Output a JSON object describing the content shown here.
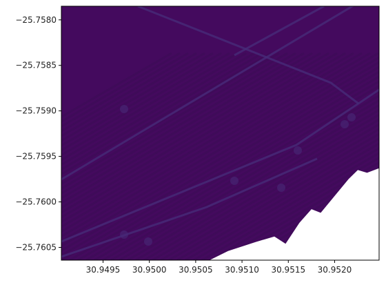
{
  "chart_data": {
    "type": "heatmap",
    "title": "",
    "xlabel": "",
    "ylabel": "",
    "xlim": [
      30.94905,
      30.95248
    ],
    "ylim": [
      -25.76064,
      -25.75785
    ],
    "x_ticks": [
      {
        "value": 30.9495,
        "label": "30.9495"
      },
      {
        "value": 30.95,
        "label": "30.9500"
      },
      {
        "value": 30.9505,
        "label": "30.9505"
      },
      {
        "value": 30.951,
        "label": "30.9510"
      },
      {
        "value": 30.9515,
        "label": "30.9515"
      },
      {
        "value": 30.952,
        "label": "30.9520"
      }
    ],
    "y_ticks": [
      {
        "value": -25.758,
        "label": "−25.7580"
      },
      {
        "value": -25.7585,
        "label": "−25.7585"
      },
      {
        "value": -25.759,
        "label": "−25.7590"
      },
      {
        "value": -25.7595,
        "label": "−25.7595"
      },
      {
        "value": -25.76,
        "label": "−25.7600"
      },
      {
        "value": -25.7605,
        "label": "−25.7605"
      }
    ],
    "colormap": "viridis",
    "grid": false,
    "legend": "none",
    "nodata_boundary": [
      [
        30.95065,
        -25.76064
      ],
      [
        30.95085,
        -25.76054
      ],
      [
        30.95115,
        -25.76044
      ],
      [
        30.95135,
        -25.76038
      ],
      [
        30.95147,
        -25.76046
      ],
      [
        30.95162,
        -25.76023
      ],
      [
        30.95175,
        -25.76008
      ],
      [
        30.95185,
        -25.76012
      ],
      [
        30.95215,
        -25.75975
      ],
      [
        30.95225,
        -25.75965
      ],
      [
        30.95235,
        -25.75968
      ],
      [
        30.95248,
        -25.75963
      ]
    ],
    "colors": {
      "background": "#440a5e",
      "stripe": "#3d0c57",
      "feature": "#472a78",
      "nodata": "#ffffff"
    }
  }
}
